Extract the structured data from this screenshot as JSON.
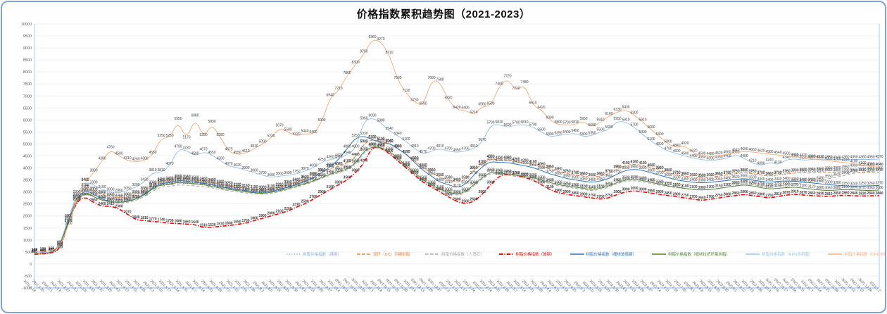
{
  "title": "价格指数累积趋势图（2021-2023）",
  "card": {
    "border_color": "#7ca6d8",
    "background": "#ffffff"
  },
  "chart_data": {
    "type": "line",
    "title": "价格指数累积趋势图（2021-2023）",
    "xlabel": "",
    "ylabel": "",
    "ylim": [
      -1000,
      10000
    ],
    "y_step": 500,
    "grid": true,
    "legend_position": "bottom-inside",
    "axis_color": "#aecbeb",
    "grid_color": "#efefef",
    "tick_label_color": "#595959",
    "data_label_color": "#404040",
    "categories": [
      "2021.1.18",
      "2021.1.25",
      "2021.2.1",
      "2021.2.8",
      "2021.2.22",
      "2021.3.1",
      "2021.3.8",
      "2021.3.15",
      "2021.3.22",
      "2021.3.29",
      "2021.4.5",
      "2021.4.12",
      "2021.4.19",
      "2021.4.26",
      "2021.5.3",
      "2021.5.10",
      "2021.5.17",
      "2021.5.24",
      "2021.5.31",
      "2021.6.7",
      "2021.6.14",
      "2021.6.21",
      "2021.6.28",
      "2021.7.5",
      "2021.7.12",
      "2021.7.19",
      "2021.7.26",
      "2021.8.2",
      "2021.8.9",
      "2021.8.16",
      "2021.8.23",
      "2021.8.30",
      "2021.9.6",
      "2021.9.13",
      "2021.9.20",
      "2021.9.27",
      "2021.10.4",
      "2021.10.11",
      "2021.10.18",
      "2021.10.25",
      "2021.11.1",
      "2021.11.8",
      "2021.11.15",
      "2021.11.22",
      "2021.11.29",
      "2021.12.6",
      "2021.12.13",
      "2021.12.20",
      "2021.12.27",
      "2022.1.3",
      "2022.1.10",
      "2022.1.17",
      "2022.1.24",
      "2022.2.7",
      "2022.2.14",
      "2022.2.21",
      "2022.2.28",
      "2022.3.7",
      "2022.3.14",
      "2022.3.21",
      "2022.3.28",
      "2022.4.4",
      "2022.4.11",
      "2022.4.18",
      "2022.4.25",
      "2022.5.2",
      "2022.5.9",
      "2022.5.16",
      "2022.5.23",
      "2022.5.30",
      "2022.6.6",
      "2022.6.13",
      "2022.6.20",
      "2022.6.27",
      "2022.7.4",
      "2022.7.11",
      "2022.7.18",
      "2022.7.25",
      "2022.8.1",
      "2022.8.8",
      "2022.8.15",
      "2022.8.22",
      "2022.8.29",
      "2022.9.5",
      "2022.9.12",
      "2022.9.19",
      "2022.9.26",
      "2022.10.3",
      "2022.10.10",
      "2022.10.17",
      "2022.10.24",
      "2022.10.31",
      "2022.11.7",
      "2022.11.14",
      "2022.11.21",
      "2022.11.28",
      "2022.12.5",
      "2022.12.12",
      "2022.12.19",
      "2022.12.26",
      "2023.1.2"
    ],
    "series": [
      {
        "name": "树脂价格指数（通用）",
        "color": "#8faadc",
        "style": "dotted",
        "width": 1,
        "values": [
          430,
          450,
          480,
          700,
          1850,
          2750,
          3150,
          3000,
          2850,
          2750,
          2700,
          2750,
          2850,
          3000,
          3250,
          3400,
          3430,
          3520,
          3500,
          3460,
          3420,
          3380,
          3300,
          3250,
          3200,
          3150,
          3100,
          3080,
          3120,
          3200,
          3300,
          3400,
          3520,
          3660,
          3800,
          3970,
          4060,
          4180,
          4450,
          5000,
          5180,
          5100,
          5000,
          4800,
          4570,
          4300,
          4000,
          3800,
          3600,
          3500,
          3400,
          3500,
          3900,
          4150,
          4370,
          4320,
          4330,
          4250,
          4200,
          4150,
          4050,
          3950,
          3850,
          3750,
          3700,
          3650,
          3600,
          3650,
          3750,
          3950,
          4100,
          4150,
          4100,
          4000,
          3900,
          3800,
          3700,
          3650,
          3600,
          3580,
          3600,
          3650,
          3700,
          3750,
          3800,
          3750,
          3700,
          3650,
          3700,
          3750,
          3800,
          3820,
          3840,
          3860,
          3880,
          3900,
          3950,
          4000,
          4020,
          4030,
          4040
        ]
      },
      {
        "name": "双环（DC）手糊树脂",
        "color": "#ed7d31",
        "style": "dashed",
        "width": 1,
        "values": [
          460,
          480,
          510,
          760,
          1900,
          2800,
          3200,
          3050,
          2900,
          2800,
          2760,
          2800,
          2900,
          3060,
          3300,
          3450,
          3480,
          3560,
          3540,
          3500,
          3460,
          3400,
          3320,
          3270,
          3210,
          3160,
          3110,
          3090,
          3130,
          3210,
          3310,
          3410,
          3530,
          3670,
          3810,
          3980,
          4070,
          4190,
          4460,
          5010,
          5190,
          5110,
          5010,
          4810,
          4580,
          4310,
          4010,
          3810,
          3610,
          3510,
          3410,
          3510,
          3910,
          4160,
          4380,
          4330,
          4340,
          4260,
          4210,
          4160,
          4060,
          3960,
          3860,
          3760,
          3710,
          3660,
          3610,
          3660,
          3760,
          3960,
          4110,
          4160,
          4110,
          4010,
          3910,
          3810,
          3710,
          3660,
          3610,
          3590,
          3610,
          3660,
          3710,
          3760,
          3810,
          3760,
          3710,
          3660,
          3710,
          3760,
          3790,
          3800,
          3790,
          3800,
          3810,
          3800,
          3790,
          3800,
          3810,
          3800,
          3810
        ]
      },
      {
        "name": "树脂价格指数（人造石）",
        "color": "#a5a5a5",
        "style": "dashed",
        "width": 1,
        "values": [
          420,
          440,
          470,
          680,
          1700,
          2600,
          2950,
          2800,
          2650,
          2570,
          2520,
          2560,
          2650,
          2800,
          3050,
          3200,
          3230,
          3300,
          3280,
          3250,
          3220,
          3170,
          3100,
          3050,
          3000,
          2960,
          2920,
          2900,
          2940,
          3010,
          3100,
          3200,
          3300,
          3420,
          3560,
          3700,
          3800,
          3900,
          4150,
          4650,
          4830,
          4800,
          4650,
          4350,
          4050,
          3750,
          3450,
          3250,
          3050,
          2950,
          2850,
          2950,
          3250,
          3550,
          3780,
          3750,
          3700,
          3650,
          3600,
          3550,
          3450,
          3350,
          3250,
          3200,
          3150,
          3100,
          3050,
          3100,
          3200,
          3350,
          3450,
          3470,
          3430,
          3350,
          3280,
          3220,
          3180,
          3140,
          3100,
          3080,
          3100,
          3150,
          3200,
          3280,
          3350,
          3300,
          3250,
          3200,
          3250,
          3300,
          3350,
          3380,
          3420,
          3480,
          3550,
          3620,
          3700,
          3780,
          3830,
          3860,
          3880
        ]
      },
      {
        "name": "树脂价格指数（玻钢）",
        "color": "#ff0000",
        "style": "dashdot",
        "width": 1.6,
        "values": [
          400,
          420,
          450,
          600,
          1700,
          2600,
          2800,
          2560,
          2400,
          2410,
          2300,
          2070,
          1840,
          1810,
          1770,
          1740,
          1700,
          1680,
          1660,
          1640,
          1510,
          1530,
          1570,
          1600,
          1650,
          1700,
          1800,
          1900,
          2000,
          2100,
          2200,
          2370,
          2500,
          2700,
          2900,
          3100,
          3300,
          3500,
          3800,
          4200,
          4880,
          4850,
          4600,
          4300,
          4000,
          3700,
          3400,
          3200,
          3000,
          2800,
          2600,
          2500,
          2600,
          2900,
          3300,
          3660,
          3750,
          3700,
          3600,
          3500,
          3300,
          3100,
          2960,
          2900,
          2850,
          2800,
          2750,
          2700,
          2750,
          2900,
          3000,
          3050,
          3000,
          2950,
          2900,
          2850,
          2800,
          2750,
          2700,
          2650,
          2700,
          2750,
          2800,
          2850,
          2900,
          2850,
          2800,
          2750,
          2810,
          2870,
          2910,
          2870,
          2850,
          2830,
          2810,
          2850,
          2860,
          2840,
          2830,
          2840,
          2840
        ]
      },
      {
        "name": "树脂价格指数（缠绕玻璃钢）",
        "color": "#2e75b6",
        "style": "solid",
        "width": 1,
        "values": [
          440,
          460,
          490,
          750,
          1800,
          2700,
          3100,
          2900,
          2700,
          2600,
          2560,
          2600,
          2700,
          2900,
          3180,
          3360,
          3380,
          3480,
          3460,
          3400,
          3360,
          3300,
          3210,
          3160,
          3100,
          3050,
          3000,
          2980,
          3020,
          3100,
          3200,
          3300,
          3450,
          3600,
          3800,
          4050,
          4350,
          4800,
          5250,
          5330,
          5180,
          5030,
          5040,
          4800,
          4570,
          4230,
          3900,
          3660,
          3400,
          3310,
          3170,
          3300,
          3700,
          4050,
          4270,
          4220,
          4230,
          4150,
          4100,
          4010,
          3900,
          3750,
          3660,
          3560,
          3500,
          3450,
          3400,
          3450,
          3560,
          3750,
          3900,
          3950,
          3900,
          3800,
          3700,
          3600,
          3500,
          3450,
          3400,
          3380,
          3400,
          3440,
          3480,
          3520,
          3560,
          3500,
          3440,
          3400,
          3440,
          3460,
          3450,
          3410,
          3380,
          3340,
          3300,
          3280,
          3250,
          3240,
          3250,
          3260,
          3270
        ]
      },
      {
        "name": "树脂价格指数（缠绕拉挤环氧树脂）",
        "color": "#548235",
        "style": "solid",
        "width": 1,
        "values": [
          440,
          455,
          480,
          720,
          1750,
          2650,
          3000,
          2800,
          2650,
          2600,
          2560,
          2620,
          2700,
          2870,
          3140,
          3300,
          3330,
          3400,
          3380,
          3340,
          3300,
          3240,
          3160,
          3100,
          3060,
          3000,
          2960,
          2940,
          2980,
          3050,
          3140,
          3240,
          3340,
          3460,
          3600,
          3750,
          3850,
          3950,
          4200,
          4700,
          4880,
          4850,
          4700,
          4400,
          4100,
          3800,
          3500,
          3300,
          3100,
          3000,
          2900,
          3000,
          3300,
          3600,
          3830,
          3800,
          3750,
          3700,
          3650,
          3600,
          3500,
          3400,
          3300,
          3250,
          3200,
          3150,
          3100,
          3150,
          3250,
          3400,
          3500,
          3520,
          3480,
          3400,
          3320,
          3250,
          3200,
          3150,
          3100,
          3080,
          3100,
          3150,
          3200,
          3250,
          3300,
          3250,
          3180,
          3120,
          3150,
          3180,
          3200,
          3160,
          3120,
          3080,
          3060,
          3080,
          3100,
          3090,
          3070,
          3060,
          3080
        ]
      },
      {
        "name": "树脂价格指数（NPG类树脂）",
        "color": "#9dc3e6",
        "style": "solid",
        "width": 1,
        "values": [
          450,
          470,
          500,
          800,
          1900,
          2900,
          3420,
          3300,
          3100,
          3000,
          2960,
          3050,
          3200,
          3420,
          3810,
          3810,
          4070,
          4790,
          4730,
          4500,
          4670,
          4550,
          4300,
          4070,
          4020,
          3900,
          3800,
          3700,
          3600,
          3660,
          3690,
          3750,
          3870,
          4000,
          4250,
          4350,
          4420,
          4540,
          4800,
          5960,
          6090,
          5880,
          5540,
          5340,
          5100,
          4810,
          4570,
          4700,
          4810,
          4700,
          4650,
          4700,
          4810,
          5070,
          5790,
          5810,
          5690,
          5790,
          5810,
          5700,
          5500,
          5300,
          5350,
          5400,
          5450,
          5300,
          5350,
          5500,
          5600,
          5950,
          5910,
          5700,
          5400,
          5100,
          4900,
          4700,
          4600,
          4500,
          4400,
          4350,
          4300,
          4350,
          4400,
          4560,
          4400,
          4210,
          4090,
          4240,
          4130,
          4340,
          4380,
          4320,
          4350,
          4370,
          4350,
          4340,
          4360,
          4350,
          4360,
          4350,
          4370
        ]
      },
      {
        "name": "树脂价格指数（DPG类树脂）",
        "color": "#f4b183",
        "style": "solid",
        "width": 1,
        "values": [
          500,
          520,
          560,
          700,
          1600,
          2700,
          3400,
          3800,
          4300,
          4760,
          4500,
          4310,
          4260,
          4300,
          4550,
          5250,
          5250,
          5950,
          5170,
          6080,
          5280,
          5830,
          5280,
          4675,
          4550,
          4610,
          4810,
          5000,
          5230,
          5670,
          5500,
          5320,
          5440,
          5400,
          5900,
          6940,
          7210,
          7860,
          8300,
          8750,
          9360,
          9270,
          8710,
          7660,
          7120,
          6730,
          6590,
          7660,
          7580,
          6820,
          6420,
          6400,
          6210,
          6560,
          6580,
          7400,
          7720,
          7220,
          7480,
          6610,
          6420,
          6000,
          5800,
          5790,
          5810,
          5950,
          5690,
          5910,
          6160,
          6330,
          6430,
          6200,
          5910,
          5600,
          5300,
          5000,
          4840,
          4920,
          4620,
          4500,
          4480,
          4520,
          4560,
          4640,
          4690,
          4660,
          4620,
          4580,
          4540,
          4500,
          4460,
          4420,
          4380,
          4340,
          4300,
          4260,
          4220,
          4180,
          4100,
          4060,
          4040
        ]
      }
    ]
  }
}
